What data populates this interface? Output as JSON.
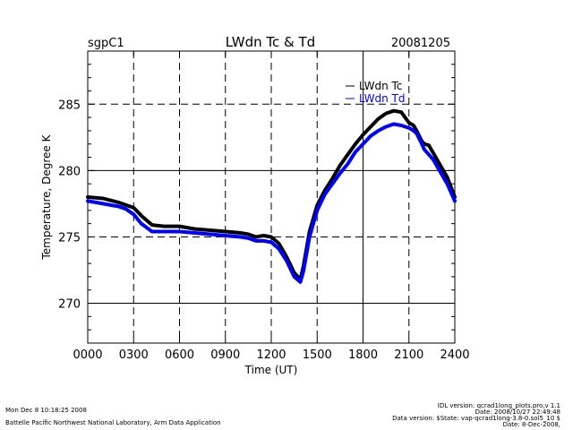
{
  "header": {
    "site": "sgpC1",
    "title": "LWdn Tc & Td",
    "date": "20081205"
  },
  "chart_data": {
    "type": "line",
    "title": "LWdn Tc & Td",
    "xlabel": "Time (UT)",
    "ylabel": "Temperature, Degree K",
    "xlim": [
      0,
      2400
    ],
    "ylim": [
      267,
      289
    ],
    "x_ticks": [
      0,
      300,
      600,
      900,
      1200,
      1500,
      1800,
      2100,
      2400
    ],
    "x_tick_labels": [
      "0000",
      "0300",
      "0600",
      "0900",
      "1200",
      "1500",
      "1800",
      "2100",
      "2400"
    ],
    "y_ticks": [
      270,
      275,
      280,
      285
    ],
    "y_tick_labels": [
      "270",
      "275",
      "280",
      "285"
    ],
    "grid": "dashed",
    "legend_position": "top-right",
    "series": [
      {
        "name": "LWdn Tc",
        "color": "#000000",
        "x": [
          0,
          100,
          200,
          250,
          300,
          350,
          420,
          500,
          600,
          700,
          800,
          900,
          1000,
          1050,
          1100,
          1150,
          1200,
          1250,
          1300,
          1350,
          1390,
          1410,
          1450,
          1500,
          1550,
          1600,
          1650,
          1700,
          1750,
          1800,
          1850,
          1900,
          1950,
          2000,
          2050,
          2100,
          2130,
          2150,
          2180,
          2200,
          2230,
          2260,
          2300,
          2350,
          2400
        ],
        "values": [
          278.0,
          277.9,
          277.6,
          277.4,
          277.2,
          276.6,
          275.9,
          275.8,
          275.8,
          275.6,
          275.5,
          275.4,
          275.3,
          275.2,
          275.0,
          275.1,
          275.0,
          274.5,
          273.5,
          272.3,
          271.8,
          272.8,
          275.4,
          277.4,
          278.5,
          279.4,
          280.4,
          281.2,
          282.0,
          282.7,
          283.3,
          283.9,
          284.3,
          284.5,
          284.4,
          283.6,
          283.4,
          283.0,
          282.3,
          282.0,
          281.9,
          281.3,
          280.5,
          279.5,
          278.0
        ]
      },
      {
        "name": "LWdn Td",
        "color": "#0000ff",
        "x": [
          0,
          100,
          200,
          250,
          300,
          350,
          420,
          500,
          600,
          700,
          800,
          900,
          1000,
          1050,
          1100,
          1150,
          1200,
          1250,
          1300,
          1350,
          1390,
          1410,
          1450,
          1500,
          1550,
          1600,
          1650,
          1700,
          1750,
          1800,
          1850,
          1900,
          1950,
          2000,
          2050,
          2100,
          2130,
          2150,
          2180,
          2200,
          2230,
          2260,
          2300,
          2350,
          2400
        ],
        "values": [
          277.7,
          277.5,
          277.3,
          277.1,
          276.7,
          276.0,
          275.4,
          275.4,
          275.4,
          275.3,
          275.2,
          275.1,
          275.0,
          274.9,
          274.7,
          274.7,
          274.6,
          274.1,
          273.2,
          272.0,
          271.6,
          272.4,
          275.0,
          277.0,
          278.2,
          279.0,
          279.8,
          280.5,
          281.4,
          282.0,
          282.6,
          283.0,
          283.3,
          283.5,
          283.4,
          283.2,
          283.0,
          282.8,
          282.1,
          281.6,
          281.2,
          280.8,
          280.0,
          279.0,
          277.7
        ]
      }
    ]
  },
  "footer": {
    "left_line1": "Mon Dec  8 10:18:25 2008",
    "left_line2": "Battelle Pacific Northwest National Laboratory, Arm Data Application",
    "right_line1": "IDL version: qcrad1long_plots.pro,v 1.1",
    "right_line2": "Date: 2008/10/27 22:49:48",
    "right_line3": "Data version: $State: vap-qcrad1long-3.8-0.sol5_10 $",
    "right_line4": "Date: 8-Dec-2008,"
  }
}
